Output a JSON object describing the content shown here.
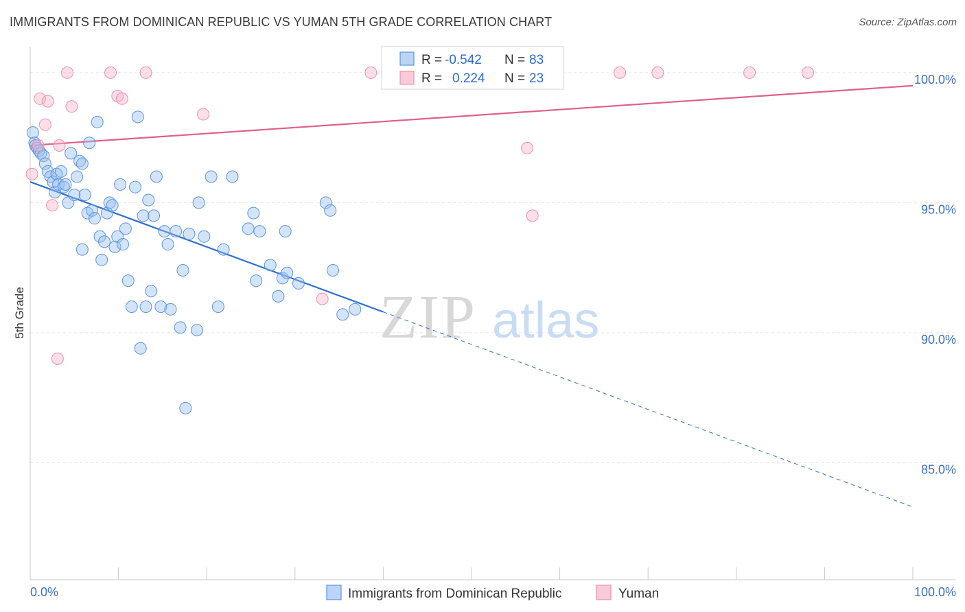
{
  "title": "IMMIGRANTS FROM DOMINICAN REPUBLIC VS YUMAN 5TH GRADE CORRELATION CHART",
  "source": "Source: ZipAtlas.com",
  "watermark": {
    "zip": "ZIP",
    "atlas": "atlas"
  },
  "colors": {
    "blue": "#5b93e0",
    "pink": "#ee8fac",
    "blue_line": "#2e6fd2",
    "pink_line": "#e0608a",
    "tick": "#3b6fc4"
  },
  "legend": {
    "r_label": "R =",
    "n_label": "N =",
    "rows": [
      {
        "r": "-0.542",
        "n": "83"
      },
      {
        "r": "0.224",
        "n": "23"
      }
    ]
  },
  "chart_data": {
    "type": "scatter",
    "ylabel": "5th Grade",
    "xlabel": "",
    "x_ticks": [
      "0.0%",
      "100.0%"
    ],
    "y_ticks": [
      "100.0%",
      "95.0%",
      "90.0%",
      "85.0%"
    ],
    "y_tick_values": [
      100,
      95,
      90,
      85
    ],
    "xlim": [
      0,
      100
    ],
    "ylim": [
      80.5,
      101
    ],
    "grid": true,
    "legend_position": "top-center",
    "series": [
      {
        "name": "Immigrants from Dominican Republic",
        "color": "#5b93e0",
        "trend": {
          "x0": 0,
          "y0": 95.8,
          "x1": 40,
          "y1": 90.8,
          "x_dash_end": 100,
          "y_dash_end": 83.3
        },
        "points": [
          [
            0.3,
            97.7
          ],
          [
            0.5,
            97.3
          ],
          [
            0.6,
            97.2
          ],
          [
            0.8,
            97.1
          ],
          [
            1.0,
            97.0
          ],
          [
            1.2,
            96.9
          ],
          [
            1.5,
            96.8
          ],
          [
            1.7,
            96.5
          ],
          [
            2.0,
            96.2
          ],
          [
            2.3,
            96.0
          ],
          [
            2.6,
            95.8
          ],
          [
            2.8,
            95.4
          ],
          [
            3.0,
            96.1
          ],
          [
            3.2,
            95.7
          ],
          [
            3.5,
            96.2
          ],
          [
            3.8,
            95.6
          ],
          [
            4.0,
            95.7
          ],
          [
            4.3,
            95.0
          ],
          [
            4.6,
            96.9
          ],
          [
            5.0,
            95.3
          ],
          [
            5.3,
            96.0
          ],
          [
            5.6,
            96.6
          ],
          [
            5.9,
            96.5
          ],
          [
            6.2,
            95.3
          ],
          [
            6.5,
            94.6
          ],
          [
            6.7,
            97.3
          ],
          [
            7.0,
            94.7
          ],
          [
            7.3,
            94.4
          ],
          [
            7.6,
            98.1
          ],
          [
            7.9,
            93.7
          ],
          [
            8.1,
            92.8
          ],
          [
            8.4,
            93.5
          ],
          [
            8.7,
            94.6
          ],
          [
            9.0,
            95.0
          ],
          [
            9.3,
            94.9
          ],
          [
            9.6,
            93.3
          ],
          [
            9.9,
            93.7
          ],
          [
            10.2,
            95.7
          ],
          [
            10.5,
            93.4
          ],
          [
            10.8,
            94.0
          ],
          [
            11.1,
            92.0
          ],
          [
            11.5,
            91.0
          ],
          [
            11.9,
            95.6
          ],
          [
            12.2,
            98.3
          ],
          [
            12.5,
            89.4
          ],
          [
            12.8,
            94.5
          ],
          [
            13.1,
            91.0
          ],
          [
            13.4,
            95.1
          ],
          [
            13.7,
            91.6
          ],
          [
            14.0,
            94.5
          ],
          [
            14.3,
            96.0
          ],
          [
            14.8,
            91.0
          ],
          [
            15.2,
            93.9
          ],
          [
            15.6,
            93.4
          ],
          [
            15.9,
            90.9
          ],
          [
            16.5,
            93.9
          ],
          [
            17.0,
            90.2
          ],
          [
            17.3,
            92.4
          ],
          [
            17.6,
            87.1
          ],
          [
            18.0,
            93.8
          ],
          [
            18.9,
            90.1
          ],
          [
            19.1,
            95.0
          ],
          [
            19.7,
            93.7
          ],
          [
            20.5,
            96.0
          ],
          [
            21.3,
            91.0
          ],
          [
            21.9,
            93.2
          ],
          [
            22.9,
            96.0
          ],
          [
            24.7,
            94.0
          ],
          [
            25.3,
            94.6
          ],
          [
            25.6,
            92.0
          ],
          [
            26.0,
            93.9
          ],
          [
            27.2,
            92.6
          ],
          [
            28.1,
            91.4
          ],
          [
            28.6,
            92.1
          ],
          [
            28.9,
            93.9
          ],
          [
            29.1,
            92.3
          ],
          [
            30.4,
            91.9
          ],
          [
            33.5,
            95.0
          ],
          [
            34.0,
            94.7
          ],
          [
            34.3,
            92.4
          ],
          [
            35.4,
            90.7
          ],
          [
            36.8,
            90.9
          ],
          [
            5.9,
            93.2
          ]
        ]
      },
      {
        "name": "Yuman",
        "color": "#ee8fac",
        "trend": {
          "x0": 0,
          "y0": 97.2,
          "x1": 100,
          "y1": 99.5
        },
        "points": [
          [
            0.2,
            96.1
          ],
          [
            1.1,
            99.0
          ],
          [
            1.7,
            98.0
          ],
          [
            2.0,
            98.9
          ],
          [
            2.5,
            94.9
          ],
          [
            3.1,
            89.0
          ],
          [
            3.3,
            97.2
          ],
          [
            4.2,
            100.0
          ],
          [
            4.7,
            98.7
          ],
          [
            9.1,
            100.0
          ],
          [
            9.9,
            99.1
          ],
          [
            10.4,
            99.0
          ],
          [
            13.1,
            100.0
          ],
          [
            19.6,
            98.4
          ],
          [
            33.1,
            91.3
          ],
          [
            38.6,
            100.0
          ],
          [
            56.9,
            94.5
          ],
          [
            56.3,
            97.1
          ],
          [
            66.8,
            100.0
          ],
          [
            71.1,
            100.0
          ],
          [
            81.5,
            100.0
          ],
          [
            88.1,
            100.0
          ],
          [
            0.9,
            97.2
          ]
        ]
      }
    ]
  }
}
